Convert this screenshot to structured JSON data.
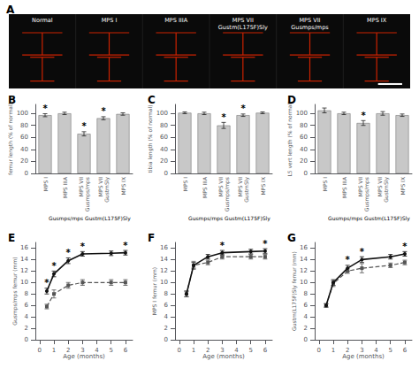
{
  "chart_data": [
    {
      "type": "image",
      "title": "A",
      "categories": [
        "Normal",
        "MPS I",
        "MPS IIIA",
        "MPS VII\nGustm(L175F)Sly",
        "MPS VII\nGusmps/mps",
        "MPS IX"
      ],
      "color": "#cc2200"
    },
    {
      "type": "bar",
      "title": "B",
      "ylabel": "femur length (% of normal)",
      "categories": [
        "MPS I",
        "MPS IIIA",
        "MPS VII\nGusmps/mps",
        "MPS VII\nGustmSly",
        "MPS IX"
      ],
      "values": [
        97,
        100,
        66,
        92,
        99
      ],
      "errors": [
        2.5,
        2,
        3.5,
        2.5,
        2
      ],
      "annotations": [
        "*",
        null,
        "*",
        "*",
        null
      ],
      "footnote": "Gusmps/mps Gustm(L175F)Sly",
      "color": "#c8c8c8",
      "ylim": [
        0,
        115
      ],
      "yticks": [
        0,
        20,
        40,
        60,
        80,
        100
      ],
      "grid": false
    },
    {
      "type": "bar",
      "title": "C",
      "ylabel": "tibia length (% of normal)",
      "categories": [
        "MPS I",
        "MPS IIIA",
        "MPS VII\nGusmps/mps",
        "MPS VII\nGustmSly",
        "MPS IX"
      ],
      "values": [
        101,
        100,
        80,
        97,
        101
      ],
      "errors": [
        1.5,
        2,
        5,
        2,
        1.5
      ],
      "annotations": [
        null,
        null,
        "*",
        "*",
        null
      ],
      "footnote": "Gusmps/mps Gustm(L175F)Sly",
      "color": "#c8c8c8",
      "ylim": [
        0,
        115
      ],
      "yticks": [
        0,
        20,
        40,
        60,
        80,
        100
      ],
      "grid": false
    },
    {
      "type": "bar",
      "title": "D",
      "ylabel": "L5 vert length (% of normal)",
      "categories": [
        "MPS I",
        "MPS IIIA",
        "MPS VII\nGusmps/mps",
        "MPS VII\nGustmSly",
        "MPS IX"
      ],
      "values": [
        105,
        100,
        84,
        100,
        97
      ],
      "errors": [
        4,
        2,
        4,
        3,
        2
      ],
      "annotations": [
        null,
        null,
        "*",
        null,
        null
      ],
      "footnote": "Gusmps/mps Gustm(L175F)Sly",
      "color": "#c8c8c8",
      "ylim": [
        0,
        115
      ],
      "yticks": [
        0,
        20,
        40,
        60,
        80,
        100
      ],
      "grid": false
    },
    {
      "type": "line",
      "title": "E",
      "xlabel": "Age (months)",
      "ylabel": "Gusmps/mps femur (mm)",
      "x": [
        0.5,
        1,
        2,
        3,
        5,
        6
      ],
      "series": [
        {
          "color": "#111111",
          "marker": "circle",
          "line_style": "solid",
          "values": [
            8.5,
            11.5,
            13.8,
            15.0,
            15.1,
            15.2
          ],
          "errors": [
            0.5,
            0.5,
            0.5,
            0.4,
            0.4,
            0.4
          ]
        },
        {
          "color": "#555555",
          "marker": "square",
          "line_style": "dashed",
          "values": [
            5.8,
            8.0,
            9.5,
            10.0,
            10.0,
            10.0
          ],
          "errors": [
            0.4,
            0.7,
            0.5,
            0.5,
            0.5,
            0.5
          ]
        }
      ],
      "annotations": [
        {
          "x": 0.5,
          "text": "*"
        },
        {
          "x": 1,
          "text": "*"
        },
        {
          "x": 2,
          "text": "*"
        },
        {
          "x": 3,
          "text": "*"
        },
        {
          "x": 6,
          "text": "*"
        }
      ],
      "xlim": [
        -0.3,
        6.5
      ],
      "xticks": [
        0,
        1,
        2,
        3,
        4,
        5,
        6
      ],
      "ylim": [
        0,
        17
      ],
      "yticks": [
        0,
        2,
        4,
        6,
        8,
        10,
        12,
        14,
        16
      ],
      "grid": false
    },
    {
      "type": "line",
      "title": "F",
      "xlabel": "Age (months)",
      "ylabel": "MPS I femur (mm)",
      "x": [
        0.5,
        1,
        2,
        3,
        5,
        6
      ],
      "series": [
        {
          "color": "#111111",
          "marker": "circle",
          "line_style": "solid",
          "values": [
            8.0,
            13.0,
            14.5,
            15.2,
            15.4,
            15.5
          ],
          "errors": [
            0.5,
            0.5,
            0.4,
            0.4,
            0.4,
            0.4
          ]
        },
        {
          "color": "#555555",
          "marker": "square",
          "line_style": "dashed",
          "values": [
            8.0,
            13.0,
            13.5,
            14.5,
            14.5,
            14.5
          ],
          "errors": [
            0.5,
            0.7,
            0.4,
            0.4,
            0.4,
            0.4
          ]
        }
      ],
      "annotations": [
        {
          "x": 3,
          "text": "*"
        },
        {
          "x": 6,
          "text": "*"
        }
      ],
      "xlim": [
        -0.3,
        6.5
      ],
      "xticks": [
        0,
        1,
        2,
        3,
        4,
        5,
        6
      ],
      "ylim": [
        0,
        17
      ],
      "yticks": [
        0,
        2,
        4,
        6,
        8,
        10,
        12,
        14,
        16
      ],
      "grid": false
    },
    {
      "type": "line",
      "title": "G",
      "xlabel": "Age (months)",
      "ylabel": "Gustm(L175F)Sly femur (mm)",
      "x": [
        0.5,
        1,
        2,
        3,
        5,
        6
      ],
      "series": [
        {
          "color": "#111111",
          "marker": "circle",
          "line_style": "solid",
          "values": [
            6.0,
            10.0,
            12.5,
            14.0,
            14.5,
            15.0
          ],
          "errors": [
            0.3,
            0.5,
            0.5,
            0.5,
            0.4,
            0.4
          ]
        },
        {
          "color": "#555555",
          "marker": "square",
          "line_style": "dashed",
          "values": [
            6.0,
            9.8,
            12.0,
            12.5,
            13.0,
            13.5
          ],
          "errors": [
            0.3,
            0.5,
            0.4,
            0.8,
            0.4,
            0.4
          ]
        }
      ],
      "annotations": [
        {
          "x": 2,
          "text": "*"
        },
        {
          "x": 3,
          "text": "*"
        },
        {
          "x": 6,
          "text": "*"
        }
      ],
      "xlim": [
        -0.3,
        6.5
      ],
      "xticks": [
        0,
        1,
        2,
        3,
        4,
        5,
        6
      ],
      "ylim": [
        0,
        17
      ],
      "yticks": [
        0,
        2,
        4,
        6,
        8,
        10,
        12,
        14,
        16
      ],
      "grid": false
    }
  ]
}
